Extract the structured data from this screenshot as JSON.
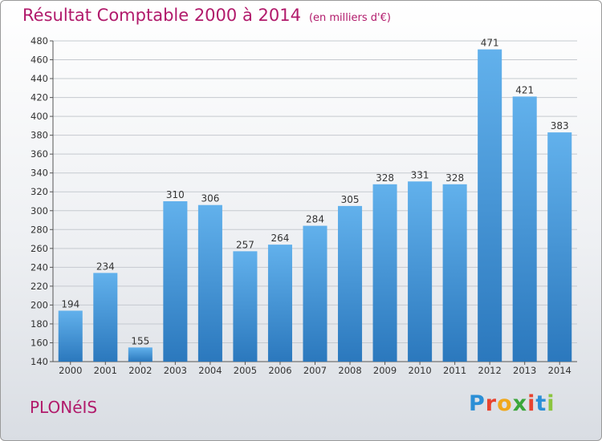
{
  "title": "Résultat Comptable 2000 à 2014",
  "subtitle": "(en milliers d'€)",
  "place": "PLONéIS",
  "logo": {
    "letters": [
      "P",
      "r",
      "o",
      "x",
      "i",
      "t",
      "i"
    ],
    "colors": [
      "#2b8fd6",
      "#e8432f",
      "#f0a81c",
      "#3aa63a",
      "#e8432f",
      "#2b8fd6",
      "#8bc53f"
    ]
  },
  "colors": {
    "bar": "#3d94d8",
    "bar_light": "#62b1ec",
    "bar_dark": "#2b78bd",
    "grid": "#c5c9cf",
    "title": "#b11a6b"
  },
  "chart_data": {
    "type": "bar",
    "categories": [
      "2000",
      "2001",
      "2002",
      "2003",
      "2004",
      "2005",
      "2006",
      "2007",
      "2008",
      "2009",
      "2010",
      "2011",
      "2012",
      "2013",
      "2014"
    ],
    "values": [
      194,
      234,
      155,
      310,
      306,
      257,
      264,
      284,
      305,
      328,
      331,
      328,
      471,
      421,
      383
    ],
    "ylim": [
      140,
      480
    ],
    "yticks": [
      140,
      160,
      180,
      200,
      220,
      240,
      260,
      280,
      300,
      320,
      340,
      360,
      380,
      400,
      420,
      440,
      460,
      480
    ],
    "grid": true,
    "data_labels": true
  }
}
